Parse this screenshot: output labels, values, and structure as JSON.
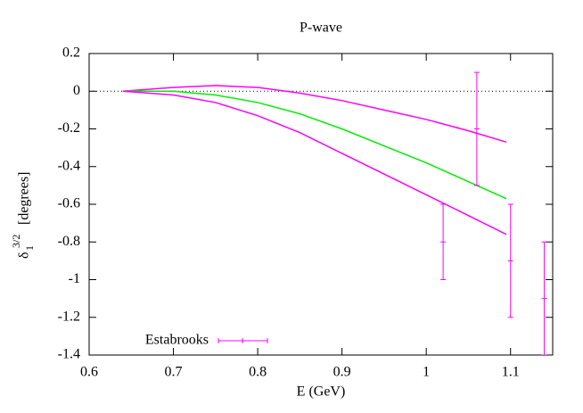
{
  "chart_data": {
    "type": "line",
    "title": "P-wave",
    "xlabel": "E (GeV)",
    "ylabel": {
      "symbol": "δ",
      "subscript": "1",
      "superscript": "3/2",
      "unit": "[degrees]"
    },
    "xlim": [
      0.6,
      1.15
    ],
    "xticks": [
      0.6,
      0.7,
      0.8,
      0.9,
      1,
      1.1
    ],
    "ylim": [
      -1.4,
      0.2
    ],
    "yticks": [
      0.2,
      0,
      -0.2,
      -0.4,
      -0.6,
      -0.8,
      -1,
      -1.2,
      -1.4
    ],
    "zero_line": true,
    "legend": "bottom-left",
    "series": [
      {
        "color": "#ff00ff",
        "x": [
          0.64,
          0.7,
          0.75,
          0.8,
          0.85,
          0.9,
          0.95,
          1.0,
          1.05,
          1.095
        ],
        "values": [
          0,
          0.02,
          0.03,
          0.02,
          -0.01,
          -0.05,
          -0.1,
          -0.15,
          -0.21,
          -0.27
        ]
      },
      {
        "color": "#00ee00",
        "x": [
          0.64,
          0.7,
          0.75,
          0.8,
          0.85,
          0.9,
          0.95,
          1.0,
          1.05,
          1.095
        ],
        "values": [
          0,
          0,
          -0.02,
          -0.06,
          -0.12,
          -0.2,
          -0.29,
          -0.38,
          -0.48,
          -0.57
        ]
      },
      {
        "color": "#ff00ff",
        "x": [
          0.64,
          0.7,
          0.75,
          0.8,
          0.85,
          0.9,
          0.95,
          1.0,
          1.05,
          1.095
        ],
        "values": [
          0,
          -0.02,
          -0.06,
          -0.13,
          -0.22,
          -0.33,
          -0.44,
          -0.55,
          -0.66,
          -0.76
        ]
      },
      {
        "name": "Estabrooks",
        "type": "errorbar",
        "color": "#ff00ff",
        "x": [
          1.02,
          1.06,
          1.1,
          1.14
        ],
        "values": [
          -0.8,
          -0.2,
          -0.9,
          -1.1
        ],
        "errors": [
          0.2,
          0.3,
          0.3,
          0.3
        ]
      }
    ]
  }
}
